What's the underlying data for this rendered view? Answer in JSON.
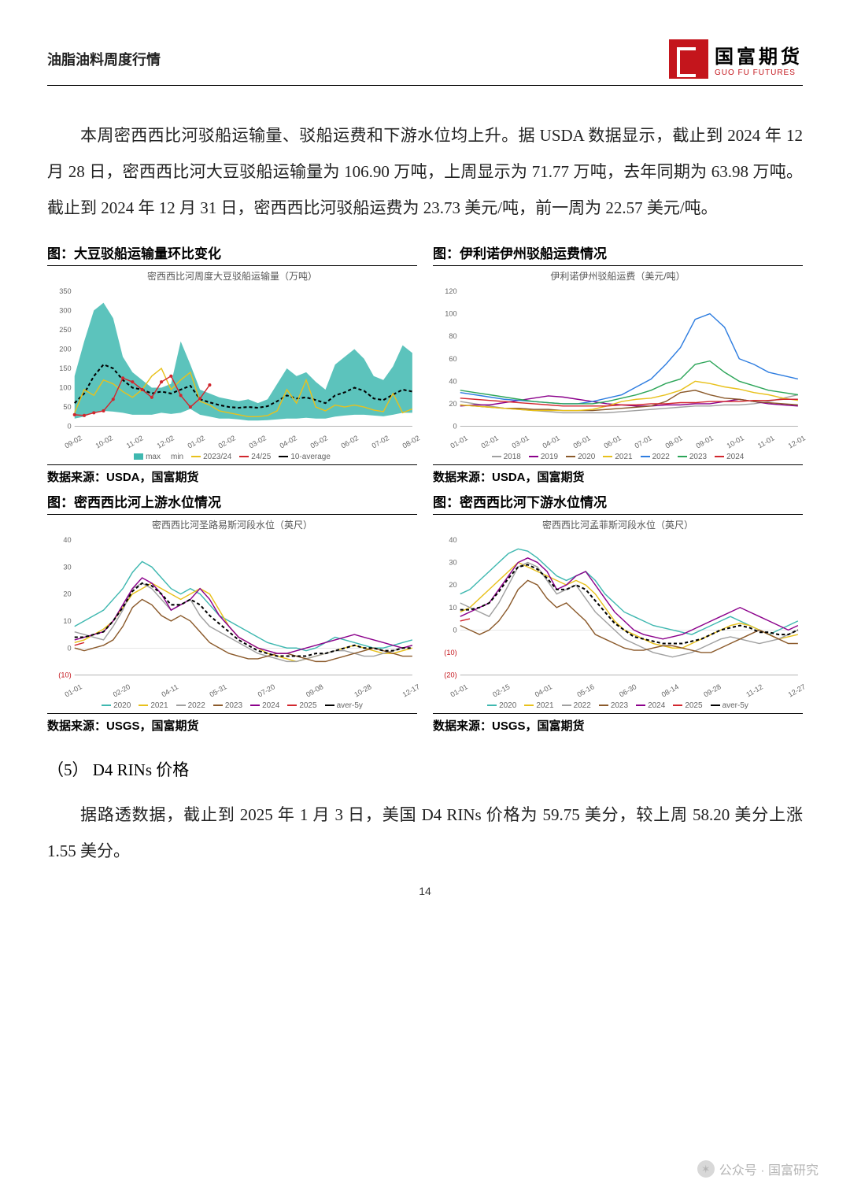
{
  "header": {
    "title": "油脂油料周度行情",
    "logo_cn": "国富期货",
    "logo_en": "GUO FU FUTURES"
  },
  "paragraphs": {
    "p1": "本周密西西比河驳船运输量、驳船运费和下游水位均上升。据 USDA 数据显示，截止到 2024 年 12 月 28 日，密西西比河大豆驳船运输量为 106.90 万吨，上周显示为 71.77 万吨，去年同期为 63.98 万吨。截止到 2024 年 12 月 31 日，密西西比河驳船运费为 23.73 美元/吨，前一周为 22.57 美元/吨。",
    "p2": "据路透数据，截止到 2025 年 1 月 3 日，美国 D4 RINs 价格为 59.75 美分，较上周 58.20 美分上涨 1.55 美分。"
  },
  "section_head": "（5） D4 RINs 价格",
  "page_number": "14",
  "footer": {
    "wm": "公众号 · 国富研究"
  },
  "charts": {
    "barge_volume": {
      "type": "line_area",
      "title": "图：大豆驳船运输量环比变化",
      "subtitle": "密西西比河周度大豆驳船运输量（万吨）",
      "source": "数据来源：USDA，国富期货",
      "ylim": [
        0,
        350
      ],
      "ytick_step": 50,
      "x_labels": [
        "09-02",
        "10-02",
        "11-02",
        "12-02",
        "01-02",
        "02-02",
        "03-02",
        "04-02",
        "05-02",
        "06-02",
        "07-02",
        "08-02"
      ],
      "colors": {
        "area": "#3fb8b0",
        "s2023_24": "#e8c11c",
        "s2024_25": "#d1272e",
        "avg10": "#000000"
      },
      "series": {
        "max": [
          130,
          220,
          300,
          320,
          280,
          180,
          140,
          120,
          100,
          100,
          110,
          220,
          160,
          95,
          85,
          75,
          70,
          65,
          70,
          60,
          70,
          110,
          150,
          130,
          140,
          115,
          95,
          160,
          180,
          200,
          175,
          130,
          120,
          155,
          210,
          190
        ],
        "min": [
          20,
          25,
          35,
          40,
          38,
          35,
          30,
          30,
          30,
          35,
          32,
          35,
          45,
          30,
          25,
          20,
          20,
          18,
          15,
          15,
          16,
          18,
          20,
          20,
          22,
          20,
          20,
          25,
          28,
          30,
          30,
          28,
          26,
          30,
          35,
          35
        ],
        "avg10": [
          60,
          85,
          130,
          160,
          150,
          120,
          100,
          95,
          85,
          90,
          85,
          95,
          105,
          70,
          62,
          55,
          50,
          48,
          50,
          48,
          52,
          65,
          80,
          72,
          75,
          68,
          60,
          80,
          88,
          100,
          92,
          72,
          68,
          82,
          95,
          90
        ],
        "s2023_24": [
          35,
          95,
          80,
          120,
          110,
          90,
          75,
          95,
          130,
          150,
          95,
          120,
          140,
          65,
          55,
          40,
          35,
          30,
          25,
          25,
          28,
          40,
          95,
          60,
          120,
          50,
          40,
          55,
          50,
          55,
          50,
          42,
          38,
          85,
          35,
          45
        ],
        "s2024_25": [
          30,
          28,
          35,
          40,
          70,
          125,
          115,
          95,
          75,
          115,
          130,
          80,
          50,
          72,
          107
        ]
      },
      "legend": [
        {
          "label": "max",
          "type": "area",
          "key": "area"
        },
        {
          "label": "min",
          "type": "none",
          "key": "area"
        },
        {
          "label": "2023/24",
          "type": "line",
          "key": "s2023_24"
        },
        {
          "label": "24/25",
          "type": "linedot",
          "key": "s2024_25"
        },
        {
          "label": "10-average",
          "type": "dash",
          "key": "avg10"
        }
      ]
    },
    "illinois_rate": {
      "type": "multi_line",
      "title": "图：伊利诺伊州驳船运费情况",
      "subtitle": "伊利诺伊州驳船运费（美元/吨）",
      "source": "数据来源：USDA，国富期货",
      "ylim": [
        0,
        120
      ],
      "ytick_step": 20,
      "x_labels": [
        "01-01",
        "02-01",
        "03-01",
        "04-01",
        "05-01",
        "06-01",
        "07-01",
        "08-01",
        "09-01",
        "10-01",
        "11-01",
        "12-01"
      ],
      "colors": {
        "y2018": "#a0a0a0",
        "y2019": "#8b008b",
        "y2020": "#8b5a2b",
        "y2021": "#e8c11c",
        "y2022": "#2e7de0",
        "y2023": "#2ca558",
        "y2024": "#d1272e"
      },
      "series": {
        "y2018": [
          22,
          20,
          18,
          16,
          15,
          14,
          13,
          12,
          12,
          12,
          12,
          13,
          14,
          15,
          16,
          17,
          18,
          18,
          19,
          19,
          20,
          22,
          25,
          28
        ],
        "y2019": [
          18,
          19,
          19,
          21,
          23,
          25,
          27,
          26,
          24,
          22,
          20,
          19,
          18,
          18,
          19,
          19,
          20,
          20,
          22,
          24,
          22,
          20,
          19,
          18
        ],
        "y2020": [
          19,
          18,
          17,
          16,
          16,
          15,
          15,
          14,
          14,
          14,
          15,
          16,
          17,
          18,
          22,
          30,
          32,
          28,
          25,
          24,
          22,
          21,
          20,
          19
        ],
        "y2021": [
          19,
          18,
          17,
          16,
          15,
          14,
          14,
          14,
          14,
          15,
          18,
          22,
          24,
          25,
          28,
          32,
          40,
          38,
          35,
          33,
          30,
          28,
          25,
          23
        ],
        "y2022": [
          30,
          28,
          26,
          24,
          23,
          22,
          21,
          20,
          20,
          22,
          25,
          28,
          35,
          42,
          55,
          70,
          95,
          100,
          88,
          60,
          55,
          48,
          45,
          42
        ],
        "y2023": [
          32,
          30,
          28,
          26,
          24,
          22,
          21,
          20,
          20,
          20,
          22,
          25,
          28,
          32,
          38,
          42,
          55,
          58,
          48,
          40,
          36,
          32,
          30,
          28
        ],
        "y2024": [
          25,
          24,
          23,
          22,
          21,
          20,
          19,
          18,
          18,
          18,
          18,
          19,
          19,
          20,
          20,
          21,
          21,
          22,
          22,
          22,
          23,
          23,
          24,
          24
        ]
      },
      "legend": [
        {
          "label": "2018",
          "key": "y2018"
        },
        {
          "label": "2019",
          "key": "y2019"
        },
        {
          "label": "2020",
          "key": "y2020"
        },
        {
          "label": "2021",
          "key": "y2021"
        },
        {
          "label": "2022",
          "key": "y2022"
        },
        {
          "label": "2023",
          "key": "y2023"
        },
        {
          "label": "2024",
          "key": "y2024"
        }
      ]
    },
    "upstream": {
      "type": "multi_line",
      "title": "图：密西西比河上游水位情况",
      "subtitle": "密西西比河圣路易斯河段水位（英尺）",
      "source": "数据来源：USGS，国富期货",
      "ylim": [
        -10,
        40
      ],
      "ytick_step": 10,
      "x_labels": [
        "01-01",
        "02-20",
        "04-11",
        "05-31",
        "07-20",
        "09-08",
        "10-28",
        "12-17"
      ],
      "colors": {
        "y2020": "#3fb8b0",
        "y2021": "#e8c11c",
        "y2022": "#a0a0a0",
        "y2023": "#8b5a2b",
        "y2024": "#8b008b",
        "y2025": "#d1272e",
        "avg5y": "#000000"
      },
      "series": {
        "y2020": [
          8,
          10,
          12,
          14,
          18,
          22,
          28,
          32,
          30,
          26,
          22,
          20,
          22,
          20,
          16,
          12,
          10,
          8,
          6,
          4,
          2,
          1,
          0,
          0,
          -1,
          0,
          2,
          4,
          3,
          2,
          1,
          0,
          0,
          1,
          2,
          3
        ],
        "y2021": [
          2,
          3,
          5,
          7,
          10,
          15,
          20,
          22,
          24,
          22,
          20,
          18,
          20,
          22,
          20,
          14,
          8,
          4,
          2,
          0,
          -2,
          -3,
          -4,
          -5,
          -4,
          -3,
          -2,
          -1,
          0,
          1,
          0,
          -1,
          -2,
          -2,
          -1,
          0
        ],
        "y2022": [
          6,
          5,
          4,
          3,
          8,
          14,
          22,
          24,
          22,
          18,
          14,
          16,
          18,
          12,
          8,
          6,
          4,
          2,
          0,
          -2,
          -3,
          -4,
          -5,
          -5,
          -4,
          -3,
          -2,
          -1,
          -1,
          -2,
          -3,
          -3,
          -2,
          -1,
          0,
          1
        ],
        "y2023": [
          0,
          -1,
          0,
          1,
          3,
          8,
          15,
          18,
          16,
          12,
          10,
          12,
          10,
          6,
          2,
          0,
          -2,
          -3,
          -4,
          -4,
          -3,
          -2,
          -2,
          -3,
          -4,
          -5,
          -5,
          -4,
          -3,
          -2,
          -1,
          0,
          -1,
          -2,
          -3,
          -3
        ],
        "y2024": [
          3,
          4,
          5,
          6,
          10,
          16,
          22,
          26,
          24,
          20,
          14,
          16,
          18,
          22,
          18,
          12,
          8,
          4,
          2,
          0,
          -1,
          -2,
          -2,
          -1,
          0,
          1,
          2,
          3,
          4,
          5,
          4,
          3,
          2,
          1,
          0,
          1
        ],
        "y2025": [
          1,
          2
        ],
        "avg5y": [
          4,
          4,
          5,
          6,
          10,
          15,
          21,
          24,
          23,
          20,
          16,
          16,
          18,
          16,
          12,
          9,
          6,
          3,
          1,
          -1,
          -2,
          -3,
          -3,
          -3,
          -3,
          -2,
          -2,
          -1,
          0,
          1,
          0,
          0,
          -1,
          -1,
          0,
          0
        ]
      },
      "legend": [
        {
          "label": "2020",
          "key": "y2020"
        },
        {
          "label": "2021",
          "key": "y2021"
        },
        {
          "label": "2022",
          "key": "y2022"
        },
        {
          "label": "2023",
          "key": "y2023"
        },
        {
          "label": "2024",
          "key": "y2024"
        },
        {
          "label": "2025",
          "key": "y2025"
        },
        {
          "label": "aver-5y",
          "key": "avg5y"
        }
      ]
    },
    "downstream": {
      "type": "multi_line",
      "title": "图：密西西比河下游水位情况",
      "subtitle": "密西西比河孟菲斯河段水位（英尺）",
      "source": "数据来源：USGS，国富期货",
      "ylim": [
        -20,
        40
      ],
      "ytick_step": 10,
      "x_labels": [
        "01-01",
        "02-15",
        "04-01",
        "05-16",
        "06-30",
        "08-14",
        "09-28",
        "11-12",
        "12-27"
      ],
      "colors": {
        "y2020": "#3fb8b0",
        "y2021": "#e8c11c",
        "y2022": "#a0a0a0",
        "y2023": "#8b5a2b",
        "y2024": "#8b008b",
        "y2025": "#d1272e",
        "avg5y": "#000000"
      },
      "series": {
        "y2020": [
          16,
          18,
          22,
          26,
          30,
          34,
          36,
          35,
          32,
          28,
          24,
          22,
          24,
          26,
          22,
          16,
          12,
          8,
          6,
          4,
          2,
          1,
          0,
          -1,
          -2,
          0,
          2,
          4,
          6,
          4,
          2,
          0,
          -2,
          0,
          2,
          4
        ],
        "y2021": [
          8,
          10,
          14,
          18,
          22,
          26,
          30,
          28,
          26,
          24,
          22,
          20,
          22,
          20,
          16,
          10,
          4,
          0,
          -2,
          -4,
          -6,
          -7,
          -8,
          -8,
          -6,
          -4,
          -2,
          0,
          2,
          3,
          2,
          0,
          -2,
          -4,
          -3,
          -2
        ],
        "y2022": [
          12,
          10,
          8,
          6,
          12,
          20,
          28,
          30,
          28,
          22,
          16,
          18,
          20,
          14,
          8,
          4,
          0,
          -4,
          -6,
          -8,
          -10,
          -11,
          -12,
          -11,
          -10,
          -8,
          -6,
          -4,
          -3,
          -4,
          -5,
          -6,
          -5,
          -4,
          -2,
          0
        ],
        "y2023": [
          2,
          0,
          -2,
          0,
          4,
          10,
          18,
          22,
          20,
          14,
          10,
          12,
          8,
          4,
          -2,
          -4,
          -6,
          -8,
          -9,
          -9,
          -8,
          -7,
          -7,
          -8,
          -9,
          -10,
          -10,
          -8,
          -6,
          -4,
          -2,
          0,
          -2,
          -4,
          -6,
          -6
        ],
        "y2024": [
          6,
          8,
          10,
          12,
          18,
          24,
          30,
          32,
          30,
          26,
          18,
          20,
          24,
          26,
          20,
          14,
          8,
          4,
          0,
          -2,
          -3,
          -4,
          -3,
          -2,
          0,
          2,
          4,
          6,
          8,
          10,
          8,
          6,
          4,
          2,
          0,
          2
        ],
        "y2025": [
          4,
          5
        ],
        "avg5y": [
          9,
          9,
          10,
          12,
          17,
          23,
          28,
          29,
          27,
          23,
          18,
          18,
          20,
          18,
          13,
          8,
          3,
          0,
          -3,
          -4,
          -5,
          -6,
          -6,
          -6,
          -5,
          -4,
          -2,
          0,
          1,
          2,
          1,
          -1,
          -1,
          -2,
          -2,
          0
        ]
      },
      "legend": [
        {
          "label": "2020",
          "key": "y2020"
        },
        {
          "label": "2021",
          "key": "y2021"
        },
        {
          "label": "2022",
          "key": "y2022"
        },
        {
          "label": "2023",
          "key": "y2023"
        },
        {
          "label": "2024",
          "key": "y2024"
        },
        {
          "label": "2025",
          "key": "y2025"
        },
        {
          "label": "aver-5y",
          "key": "avg5y"
        }
      ]
    }
  }
}
